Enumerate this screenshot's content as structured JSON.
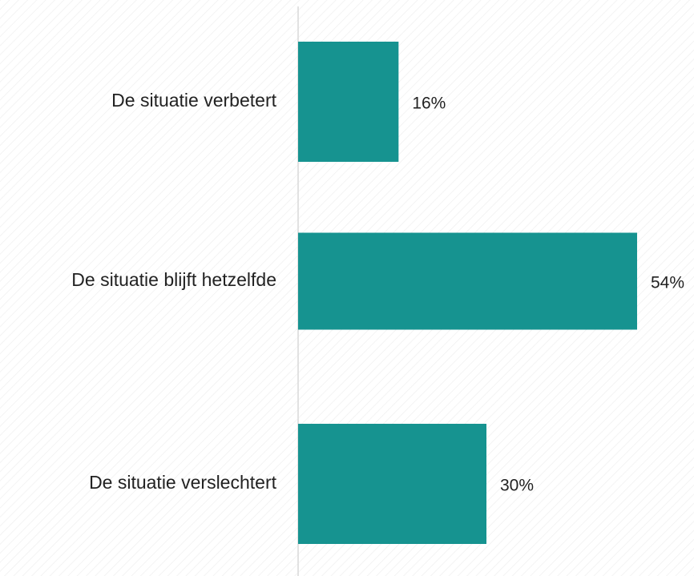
{
  "chart_data": {
    "type": "bar",
    "orientation": "horizontal",
    "categories": [
      "De situatie verbetert",
      "De situatie blijft hetzelfde",
      "De situatie verslechtert"
    ],
    "values": [
      16,
      54,
      30
    ],
    "value_labels": [
      "16%",
      "54%",
      "30%"
    ],
    "color": "#169390"
  }
}
